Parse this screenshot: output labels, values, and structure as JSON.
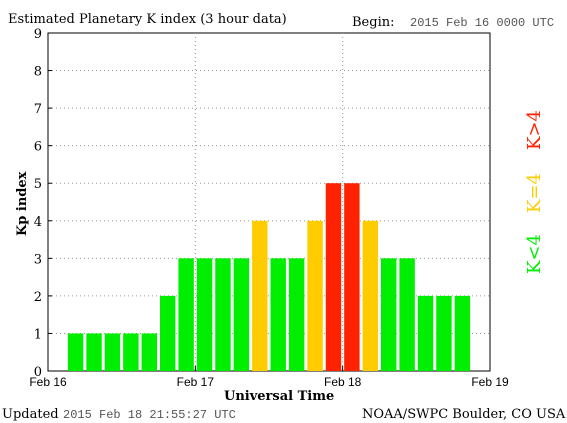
{
  "header": {
    "title": "Estimated Planetary K index (3 hour data)",
    "begin_label": "Begin:",
    "begin_value": "2015 Feb 16 0000 UTC"
  },
  "footer": {
    "updated_label": "Updated",
    "updated_value": "2015 Feb 18 21:55:27 UTC",
    "source": "NOAA/SWPC Boulder, CO USA"
  },
  "chart_data": {
    "type": "bar",
    "title": "Estimated Planetary K index (3 hour data)",
    "xlabel": "Universal Time",
    "ylabel": "Kp index",
    "ylim": [
      0,
      9
    ],
    "yticks": [
      "0",
      "1",
      "2",
      "3",
      "4",
      "5",
      "6",
      "7",
      "8",
      "9"
    ],
    "xticks": [
      "Feb 16",
      "Feb 17",
      "Feb 18",
      "Feb 19"
    ],
    "grid": true,
    "values": [
      1,
      1,
      1,
      1,
      1,
      2,
      3,
      3,
      3,
      3,
      4,
      3,
      3,
      4,
      5,
      5,
      4,
      3,
      3,
      2,
      2,
      2
    ],
    "colors": {
      "below4": "#00ee00",
      "equal4": "#ffcc00",
      "above4": "#ff2200"
    },
    "legend": [
      {
        "label": "K<4",
        "color": "#00ee00"
      },
      {
        "label": "K=4",
        "color": "#ffcc00"
      },
      {
        "label": "K>4",
        "color": "#ff2200"
      }
    ],
    "legend_position": "right"
  }
}
